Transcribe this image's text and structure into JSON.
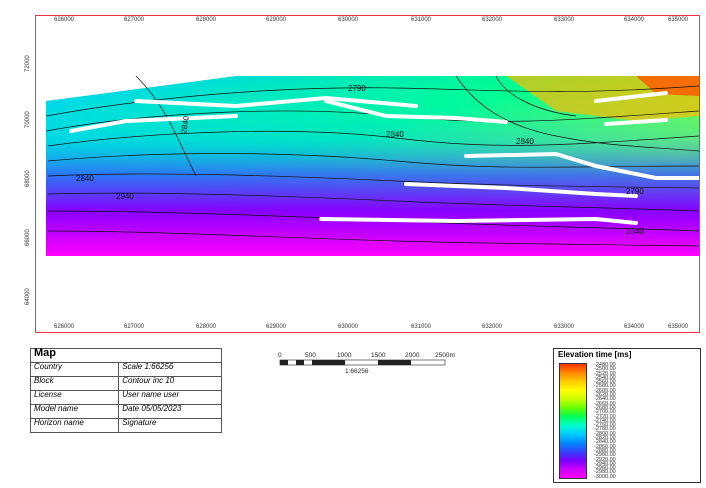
{
  "map": {
    "x_ticks": [
      "626000",
      "627000",
      "628000",
      "629000",
      "630000",
      "631000",
      "632000",
      "633000",
      "634000",
      "635000"
    ],
    "y_ticks": [
      "72000",
      "70000",
      "68000",
      "66000",
      "64000"
    ],
    "contour_labels": [
      "2790",
      "2840",
      "2840",
      "2940",
      "2840",
      "2790",
      "2840",
      "2840"
    ],
    "colors": {
      "frame": "#ee3344",
      "fault": "#ffffff"
    }
  },
  "info": {
    "title": "Map",
    "rows": [
      {
        "k": "Country",
        "v": "Scale 1:66256"
      },
      {
        "k": "Block",
        "v": "Contour inc 10"
      },
      {
        "k": "License",
        "v": "User name user"
      },
      {
        "k": "Model name",
        "v": "Date 05/05/2023"
      },
      {
        "k": "Horizon name",
        "v": "Signature"
      }
    ]
  },
  "scalebar": {
    "ticks": [
      "0",
      "500",
      "1000",
      "1500",
      "2000",
      "2500m"
    ],
    "ratio": "1:66256"
  },
  "legend": {
    "title": "Elevation time [ms]",
    "labels": [
      "-2480.00",
      "-2500.00",
      "-2520.00",
      "-2540.00",
      "-2560.00",
      "-2580.00",
      "-2600.00",
      "-2620.00",
      "-2640.00",
      "-2660.00",
      "-2680.00",
      "-2700.00",
      "-2720.00",
      "-2740.00",
      "-2760.00",
      "-2780.00",
      "-2800.00",
      "-2820.00",
      "-2840.00",
      "-2860.00",
      "-2880.00",
      "-2900.00",
      "-2920.00",
      "-2940.00",
      "-2960.00",
      "-2980.00",
      "-3000.00"
    ]
  }
}
